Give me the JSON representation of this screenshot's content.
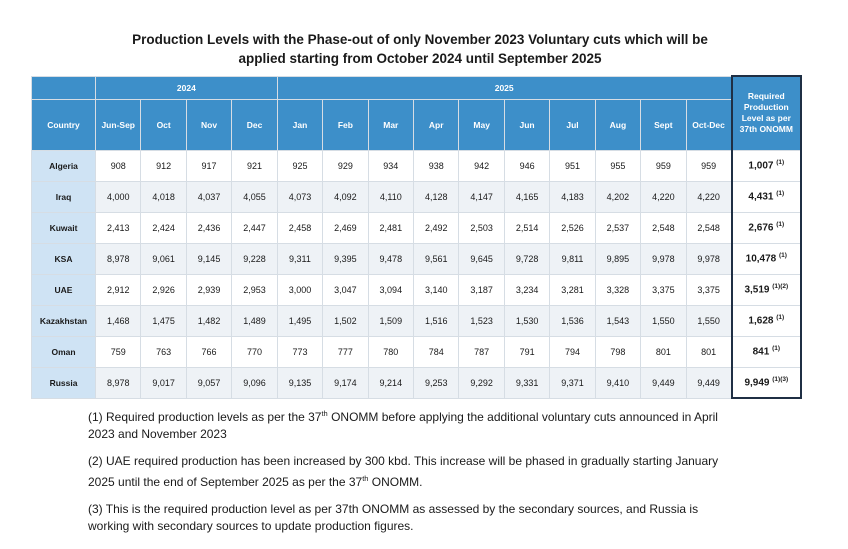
{
  "title": {
    "line1": "Production Levels with the Phase-out of only November 2023 Voluntary cuts which will be",
    "line2": "applied starting from October 2024 until September 2025"
  },
  "table": {
    "header": {
      "country": "Country",
      "year_2024": "2024",
      "year_2025": "2025",
      "required": "Required Production Level as per 37th ONOMM",
      "months": [
        "Jun-Sep",
        "Oct",
        "Nov",
        "Dec",
        "Jan",
        "Feb",
        "Mar",
        "Apr",
        "May",
        "Jun",
        "Jul",
        "Aug",
        "Sept",
        "Oct-Dec"
      ]
    },
    "rows": [
      {
        "country": "Algeria",
        "values": [
          "908",
          "912",
          "917",
          "921",
          "925",
          "929",
          "934",
          "938",
          "942",
          "946",
          "951",
          "955",
          "959",
          "959"
        ],
        "required": "1,007",
        "note": "(1)"
      },
      {
        "country": "Iraq",
        "values": [
          "4,000",
          "4,018",
          "4,037",
          "4,055",
          "4,073",
          "4,092",
          "4,110",
          "4,128",
          "4,147",
          "4,165",
          "4,183",
          "4,202",
          "4,220",
          "4,220"
        ],
        "required": "4,431",
        "note": "(1)"
      },
      {
        "country": "Kuwait",
        "values": [
          "2,413",
          "2,424",
          "2,436",
          "2,447",
          "2,458",
          "2,469",
          "2,481",
          "2,492",
          "2,503",
          "2,514",
          "2,526",
          "2,537",
          "2,548",
          "2,548"
        ],
        "required": "2,676",
        "note": "(1)"
      },
      {
        "country": "KSA",
        "values": [
          "8,978",
          "9,061",
          "9,145",
          "9,228",
          "9,311",
          "9,395",
          "9,478",
          "9,561",
          "9,645",
          "9,728",
          "9,811",
          "9,895",
          "9,978",
          "9,978"
        ],
        "required": "10,478",
        "note": "(1)"
      },
      {
        "country": "UAE",
        "values": [
          "2,912",
          "2,926",
          "2,939",
          "2,953",
          "3,000",
          "3,047",
          "3,094",
          "3,140",
          "3,187",
          "3,234",
          "3,281",
          "3,328",
          "3,375",
          "3,375"
        ],
        "required": "3,519",
        "note": "(1)(2)"
      },
      {
        "country": "Kazakhstan",
        "values": [
          "1,468",
          "1,475",
          "1,482",
          "1,489",
          "1,495",
          "1,502",
          "1,509",
          "1,516",
          "1,523",
          "1,530",
          "1,536",
          "1,543",
          "1,550",
          "1,550"
        ],
        "required": "1,628",
        "note": "(1)"
      },
      {
        "country": "Oman",
        "values": [
          "759",
          "763",
          "766",
          "770",
          "773",
          "777",
          "780",
          "784",
          "787",
          "791",
          "794",
          "798",
          "801",
          "801"
        ],
        "required": "841",
        "note": "(1)"
      },
      {
        "country": "Russia",
        "values": [
          "8,978",
          "9,017",
          "9,057",
          "9,096",
          "9,135",
          "9,174",
          "9,214",
          "9,253",
          "9,292",
          "9,331",
          "9,371",
          "9,410",
          "9,449",
          "9,449"
        ],
        "required": "9,949",
        "note": "(1)(3)"
      }
    ]
  },
  "notes": [
    {
      "pre": "(1) Required production levels as per the 37",
      "sup": "th",
      "post": " ONOMM before applying the additional voluntary cuts announced in April 2023 and November 2023"
    },
    {
      "pre": "(2) UAE required production has been increased by 300 kbd. This increase will be phased in gradually starting January 2025 until the end of September 2025 as per the 37",
      "sup": "th",
      "post": " ONOMM."
    },
    {
      "pre": "(3) This is the required production level as per 37th ONOMM as assessed by the secondary sources, and Russia is working with secondary sources to update production figures.",
      "sup": "",
      "post": ""
    }
  ]
}
